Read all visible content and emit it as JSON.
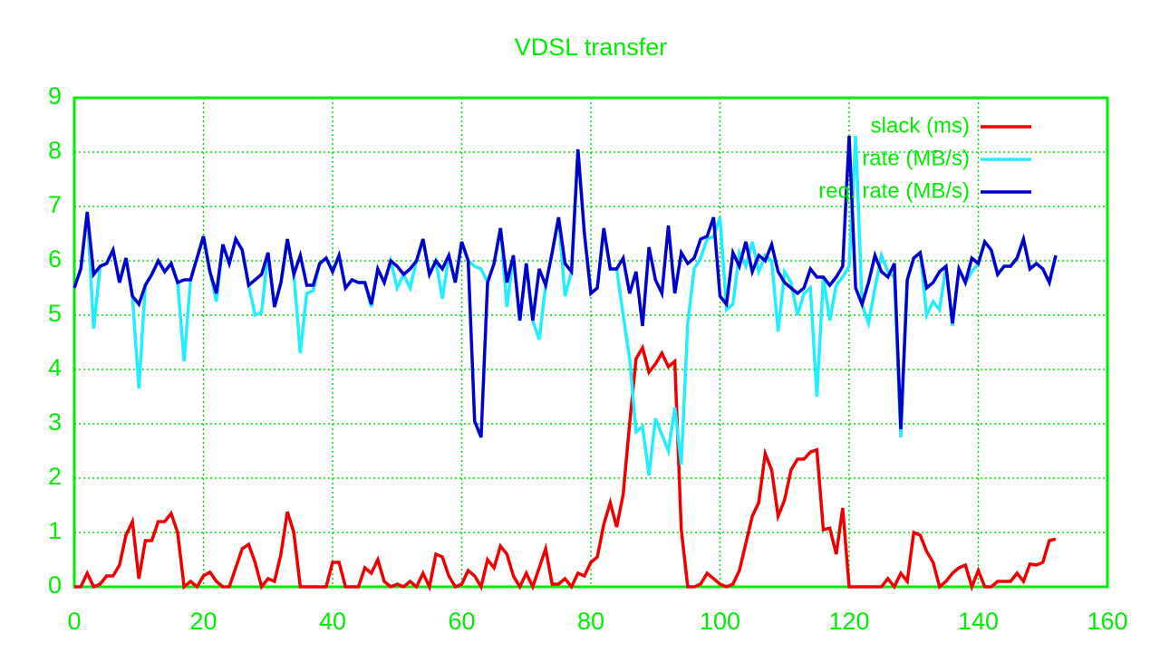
{
  "chart_data": {
    "type": "line",
    "title": "VDSL transfer",
    "x": [
      0,
      1,
      2,
      3,
      4,
      5,
      6,
      7,
      8,
      9,
      10,
      11,
      12,
      13,
      14,
      15,
      16,
      17,
      18,
      19,
      20,
      21,
      22,
      23,
      24,
      25,
      26,
      27,
      28,
      29,
      30,
      31,
      32,
      33,
      34,
      35,
      36,
      37,
      38,
      39,
      40,
      41,
      42,
      43,
      44,
      45,
      46,
      47,
      48,
      49,
      50,
      51,
      52,
      53,
      54,
      55,
      56,
      57,
      58,
      59,
      60,
      61,
      62,
      63,
      64,
      65,
      66,
      67,
      68,
      69,
      70,
      71,
      72,
      73,
      74,
      75,
      76,
      77,
      78,
      79,
      80,
      81,
      82,
      83,
      84,
      85,
      86,
      87,
      88,
      89,
      90,
      91,
      92,
      93,
      94,
      95,
      96,
      97,
      98,
      99,
      100,
      101,
      102,
      103,
      104,
      105,
      106,
      107,
      108,
      109,
      110,
      111,
      112,
      113,
      114,
      115,
      116,
      117,
      118,
      119,
      120,
      121,
      122,
      123,
      124,
      125,
      126,
      127,
      128,
      129,
      130,
      131,
      132,
      133,
      134,
      135,
      136,
      137,
      138,
      139,
      140,
      141,
      142,
      143,
      144,
      145,
      146,
      147,
      148,
      149,
      150,
      151,
      152
    ],
    "series": [
      {
        "name": "slack (ms)",
        "color": "#ee0000",
        "values": [
          0,
          0,
          0.25,
          0,
          0.05,
          0.2,
          0.2,
          0.4,
          0.95,
          1.2,
          0.15,
          0.85,
          0.85,
          1.2,
          1.2,
          1.35,
          1.0,
          0,
          0.1,
          0,
          0.2,
          0.27,
          0.1,
          0,
          0,
          0.35,
          0.7,
          0.78,
          0.45,
          0,
          0.15,
          0.1,
          0.6,
          1.38,
          1.0,
          0,
          0,
          0,
          0,
          0,
          0.45,
          0.45,
          0,
          0,
          0,
          0.35,
          0.25,
          0.5,
          0.1,
          0,
          0.05,
          0,
          0.1,
          0,
          0.25,
          0,
          0.6,
          0.55,
          0.2,
          0,
          0.05,
          0.3,
          0.2,
          0,
          0.5,
          0.35,
          0.75,
          0.6,
          0.2,
          0,
          0.25,
          0,
          0.35,
          0.7,
          0.05,
          0.05,
          0.15,
          0,
          0.25,
          0.2,
          0.45,
          0.55,
          1.15,
          1.55,
          1.1,
          1.7,
          3.0,
          4.2,
          4.4,
          3.95,
          4.1,
          4.3,
          4.05,
          4.15,
          1.05,
          0,
          0,
          0.05,
          0.25,
          0.15,
          0.05,
          0,
          0.05,
          0.3,
          0.8,
          1.3,
          1.55,
          2.45,
          2.15,
          1.3,
          1.6,
          2.15,
          2.35,
          2.35,
          2.48,
          2.52,
          1.05,
          1.08,
          0.6,
          1.45,
          0,
          0,
          0,
          0,
          0,
          0,
          0.15,
          0,
          0.25,
          0.1,
          1.0,
          0.95,
          0.65,
          0.45,
          0,
          0.1,
          0.25,
          0.35,
          0.4,
          0,
          0.3,
          0,
          0,
          0.1,
          0.1,
          0.1,
          0.25,
          0.1,
          0.42,
          0.4,
          0.45,
          0.85,
          0.88
        ]
      },
      {
        "name": "rate (MB/s)",
        "color": "#22eeff",
        "values": [
          5.5,
          5.85,
          6.9,
          4.75,
          5.9,
          5.95,
          6.2,
          5.6,
          6.05,
          5.35,
          3.65,
          5.55,
          5.75,
          6.0,
          5.8,
          5.95,
          5.6,
          4.15,
          5.65,
          6.05,
          6.45,
          5.8,
          5.25,
          6.3,
          5.95,
          6.4,
          6.2,
          5.55,
          5.0,
          5.05,
          6.15,
          5.15,
          5.6,
          6.4,
          5.75,
          4.3,
          5.4,
          5.45,
          5.95,
          6.05,
          5.8,
          6.1,
          5.5,
          5.65,
          5.6,
          5.6,
          5.15,
          5.85,
          5.6,
          6.0,
          5.5,
          5.75,
          5.5,
          6.0,
          6.4,
          5.75,
          6.0,
          5.3,
          6.1,
          5.6,
          6.35,
          6.0,
          5.9,
          5.85,
          5.6,
          5.95,
          6.6,
          5.15,
          6.1,
          4.9,
          5.95,
          4.9,
          4.55,
          5.55,
          6.15,
          6.8,
          5.35,
          5.8,
          8.05,
          6.5,
          5.4,
          5.5,
          6.6,
          5.85,
          5.85,
          5.0,
          4.2,
          2.85,
          2.95,
          2.05,
          3.1,
          2.8,
          2.5,
          3.3,
          2.25,
          4.85,
          5.85,
          6.05,
          6.4,
          6.45,
          6.8,
          5.1,
          5.2,
          6.15,
          5.9,
          6.35,
          5.8,
          6.1,
          6.0,
          4.7,
          5.8,
          5.6,
          5.0,
          5.4,
          5.5,
          3.5,
          5.7,
          4.9,
          5.55,
          5.7,
          5.9,
          8.3,
          5.2,
          4.85,
          5.5,
          6.1,
          5.8,
          5.7,
          2.75,
          5.65,
          6.05,
          6.15,
          5.0,
          5.25,
          5.1,
          5.9,
          4.8,
          5.85,
          5.6,
          5.8,
          5.95,
          6.35,
          6.2,
          5.75,
          5.9,
          5.9,
          6.05,
          6.4,
          5.85,
          5.95,
          5.85,
          5.6,
          6.1
        ]
      },
      {
        "name": "req. rate (MB/s)",
        "color": "#0000cc",
        "values": [
          5.5,
          5.85,
          6.9,
          5.75,
          5.9,
          5.95,
          6.2,
          5.6,
          6.05,
          5.35,
          5.2,
          5.55,
          5.75,
          6.0,
          5.8,
          5.95,
          5.6,
          5.65,
          5.65,
          6.05,
          6.45,
          5.8,
          5.4,
          6.3,
          5.95,
          6.4,
          6.2,
          5.55,
          5.65,
          5.75,
          6.15,
          5.15,
          5.6,
          6.4,
          5.75,
          6.1,
          5.55,
          5.55,
          5.95,
          6.05,
          5.8,
          6.1,
          5.5,
          5.65,
          5.6,
          5.6,
          5.2,
          5.85,
          5.6,
          6.0,
          5.9,
          5.75,
          5.85,
          6.0,
          6.4,
          5.75,
          6.0,
          5.85,
          6.1,
          5.6,
          6.35,
          6.0,
          3.05,
          2.75,
          5.6,
          5.95,
          6.6,
          5.6,
          6.1,
          4.9,
          5.95,
          4.9,
          5.85,
          5.55,
          6.15,
          6.8,
          5.95,
          5.8,
          8.05,
          6.5,
          5.4,
          5.5,
          6.6,
          5.85,
          5.85,
          6.05,
          5.4,
          5.8,
          4.8,
          6.25,
          5.65,
          5.4,
          6.65,
          5.4,
          6.15,
          5.95,
          6.05,
          6.4,
          6.45,
          6.8,
          5.35,
          5.2,
          6.15,
          5.9,
          6.35,
          5.8,
          6.1,
          6.0,
          6.3,
          5.8,
          5.6,
          5.5,
          5.4,
          5.5,
          5.85,
          5.7,
          5.7,
          5.55,
          5.7,
          5.9,
          8.3,
          5.5,
          5.2,
          5.6,
          6.1,
          5.8,
          5.7,
          5.95,
          2.9,
          5.65,
          6.05,
          6.15,
          5.5,
          5.6,
          5.8,
          5.9,
          4.85,
          5.85,
          5.6,
          6.05,
          5.95,
          6.35,
          6.2,
          5.75,
          5.9,
          5.9,
          6.05,
          6.4,
          5.85,
          5.95,
          5.85,
          5.6,
          6.1
        ]
      }
    ],
    "xlim": [
      0,
      160
    ],
    "xticks": [
      0,
      20,
      40,
      60,
      80,
      100,
      120,
      140,
      160
    ],
    "ylim": [
      0,
      9
    ],
    "yticks": [
      0,
      1,
      2,
      3,
      4,
      5,
      6,
      7,
      8,
      9
    ],
    "grid": true,
    "legend": "top-right"
  }
}
